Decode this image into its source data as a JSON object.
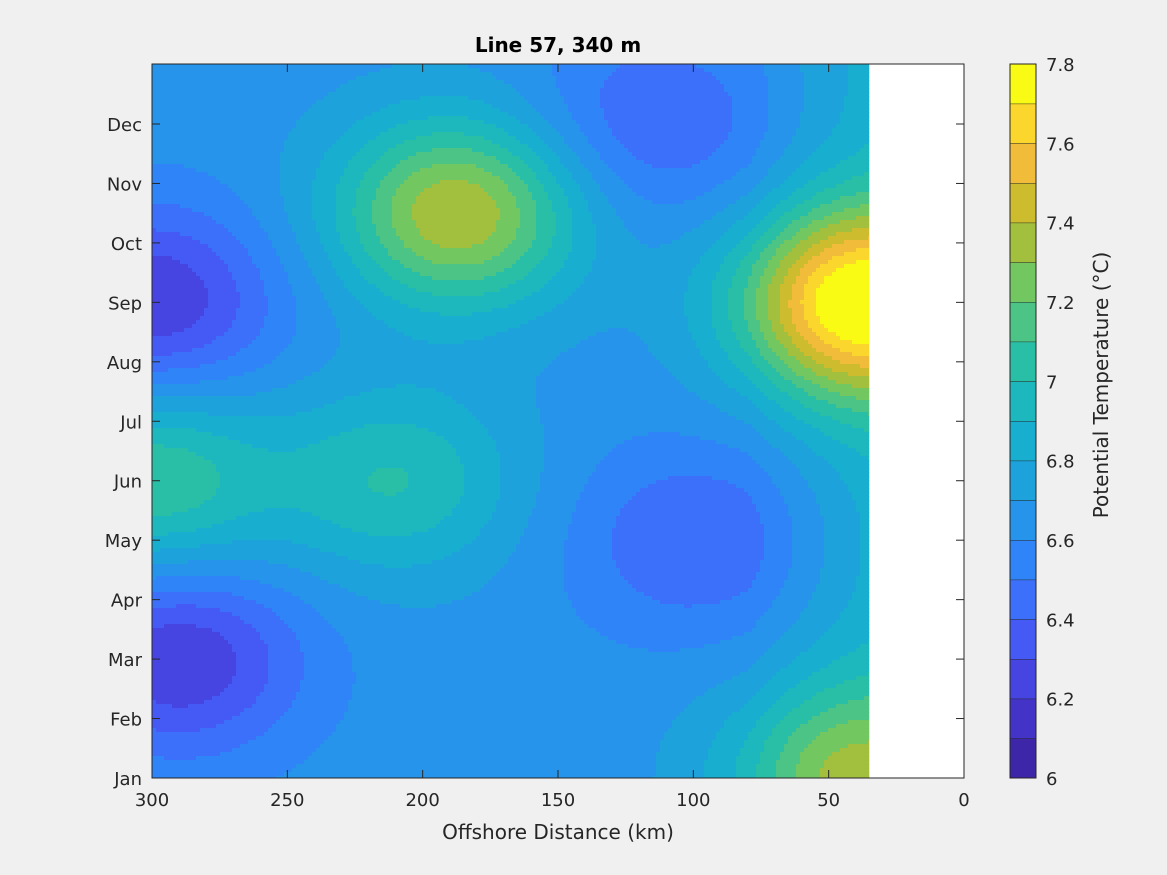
{
  "chart_data": {
    "type": "heatmap",
    "subtype": "filled-contour",
    "title": "Line 57, 340 m",
    "xlabel": "Offshore Distance (km)",
    "ylabel": "",
    "x_reversed": true,
    "xlim": [
      0,
      300
    ],
    "x_ticks": [
      300,
      250,
      200,
      150,
      100,
      50,
      0
    ],
    "x_tick_labels": [
      "300",
      "250",
      "200",
      "150",
      "100",
      "50",
      "0"
    ],
    "y_ticks": [
      "Jan",
      "Feb",
      "Mar",
      "Apr",
      "May",
      "Jun",
      "Jul",
      "Aug",
      "Sep",
      "Oct",
      "Nov",
      "Dec"
    ],
    "data_x_range": [
      35,
      300
    ],
    "colorbar": {
      "label": "Potential Temperature (°C)",
      "range": [
        6.0,
        7.8
      ],
      "step": 0.1,
      "tick_values": [
        6,
        6.2,
        6.4,
        6.6,
        6.8,
        7,
        7.2,
        7.4,
        7.6,
        7.8
      ],
      "tick_labels": [
        "6",
        "6.2",
        "6.4",
        "6.6",
        "6.8",
        "7",
        "7.2",
        "7.4",
        "7.6",
        "7.8"
      ],
      "colormap": "parula"
    },
    "features": [
      {
        "x": 187,
        "month": "Oct-Nov",
        "value": 7.4,
        "kind": "warm maximum"
      },
      {
        "x": 40,
        "month": "Sep",
        "value": 7.7,
        "kind": "warm maximum"
      },
      {
        "x": 300,
        "month": "Sep",
        "value": 6.2,
        "kind": "cool minimum"
      },
      {
        "x": 290,
        "month": "Mar",
        "value": 6.2,
        "kind": "cool minimum"
      },
      {
        "x": 100,
        "month": "May",
        "value": 6.4,
        "kind": "cool minimum"
      },
      {
        "x": 115,
        "month": "Dec",
        "value": 6.4,
        "kind": "cool minimum"
      },
      {
        "x": 300,
        "month": "Jun",
        "value": 7.1,
        "kind": "warm maximum"
      },
      {
        "x": 210,
        "month": "Jun",
        "value": 7.0,
        "kind": "warm maximum"
      },
      {
        "x": 45,
        "month": "Jan",
        "value": 7.2,
        "kind": "warm maximum"
      }
    ]
  }
}
